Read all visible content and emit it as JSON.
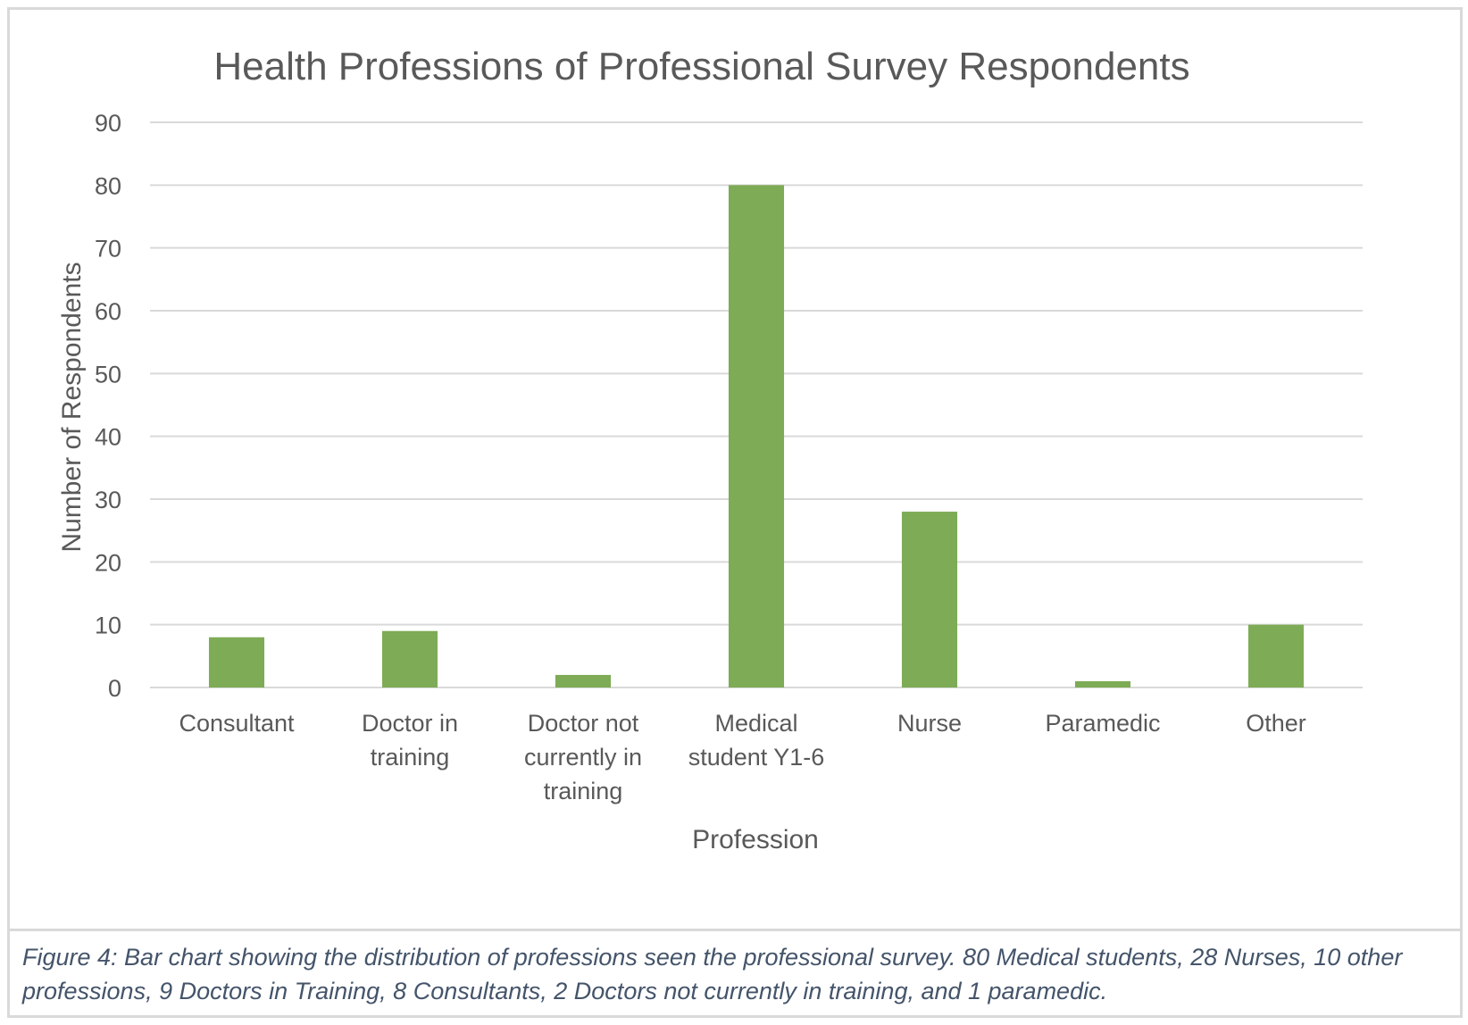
{
  "chart_data": {
    "type": "bar",
    "title": "Health Professions of Professional Survey Respondents",
    "xlabel": "Profession",
    "ylabel": "Number of Respondents",
    "categories": [
      [
        "Consultant"
      ],
      [
        "Doctor in",
        "training"
      ],
      [
        "Doctor not",
        "currently in",
        "training"
      ],
      [
        "Medical",
        "student Y1-6"
      ],
      [
        "Nurse"
      ],
      [
        "Paramedic"
      ],
      [
        "Other"
      ]
    ],
    "values": [
      8,
      9,
      2,
      80,
      28,
      1,
      10
    ],
    "ylim": [
      0,
      90
    ],
    "yticks": [
      0,
      10,
      20,
      30,
      40,
      50,
      60,
      70,
      80,
      90
    ],
    "grid": true,
    "bar_color": "#7eab55",
    "grid_color": "#d9d9d9",
    "text_color": "#595959"
  },
  "caption": "Figure 4: Bar chart showing the distribution of professions seen the professional survey. 80 Medical students, 28 Nurses, 10 other professions, 9 Doctors in Training, 8 Consultants, 2 Doctors not currently in training, and 1 paramedic."
}
